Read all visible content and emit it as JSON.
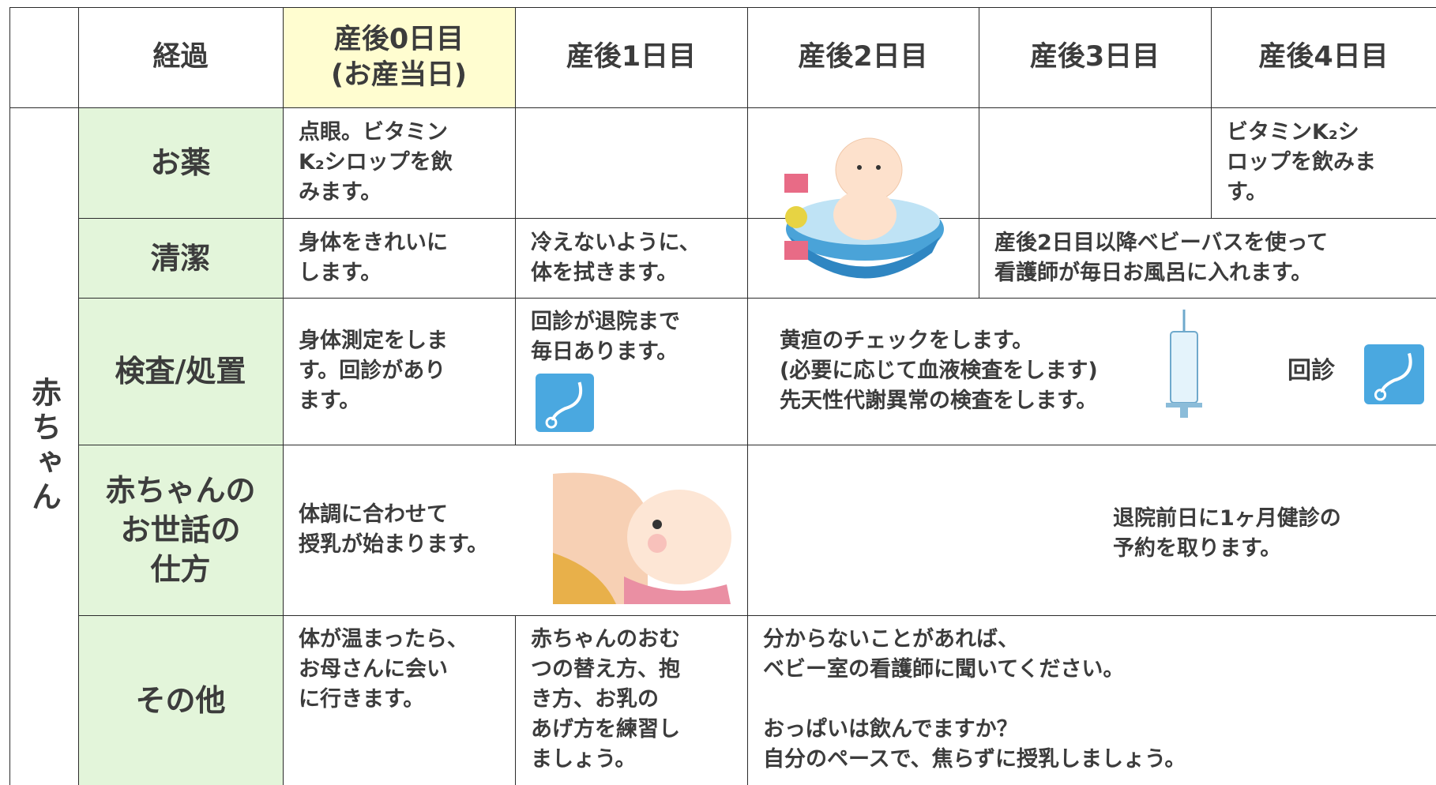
{
  "side_label": "赤ちゃん",
  "header": {
    "columns": [
      "経過",
      "産後0日目\n(お産当日)",
      "産後1日目",
      "産後2日目",
      "産後3日目",
      "産後4日目"
    ]
  },
  "rows": [
    {
      "label": "お薬",
      "cells": [
        "点眼。ビタミン\nK₂シロップを飲\nみます。",
        "ビタミンK₂シ\nロップを飲みま\nす。"
      ]
    },
    {
      "label": "清潔",
      "cells": [
        "身体をきれいに\nします。",
        "冷えないように、\n体を拭きます。",
        "産後2日目以降ベビーバスを使って\n看護師が毎日お風呂に入れます。"
      ]
    },
    {
      "label": "検査/処置",
      "cells": [
        "身体測定をしま\nす。回診があり\nます。",
        "回診が退院まで\n毎日あります。",
        "黄疸のチェックをします。\n(必要に応じて血液検査をします)\n先天性代謝異常の検査をします。",
        "回診"
      ]
    },
    {
      "label": "赤ちゃんの\nお世話の\n仕方",
      "cells": [
        "体調に合わせて\n授乳が始まります。",
        "退院前日に1ヶ月健診の\n予約を取ります。"
      ]
    },
    {
      "label": "その他",
      "cells": [
        "体が温まったら、\nお母さんに会い\nに行きます。",
        "赤ちゃんのおむ\nつの替え方、抱\nき方、お乳の\nあげ方を練習し\nましょう。",
        "分からないことがあれば、\nベビー室の看護師に聞いてください。\n\nおっぱいは飲んでますか？\n自分のペースで、焦らずに授乳しましょう。"
      ]
    }
  ]
}
